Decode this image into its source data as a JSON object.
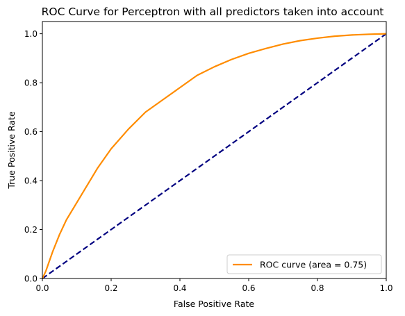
{
  "chart_data": {
    "type": "line",
    "title": "ROC Curve for Perceptron with all predictors taken into account",
    "xlabel": "False Positive Rate",
    "ylabel": "True Positive Rate",
    "xlim": [
      0.0,
      1.0
    ],
    "ylim": [
      0.0,
      1.05
    ],
    "x_ticks": [
      "0.0",
      "0.2",
      "0.4",
      "0.6",
      "0.8",
      "1.0"
    ],
    "y_ticks": [
      "0.0",
      "0.2",
      "0.4",
      "0.6",
      "0.8",
      "1.0"
    ],
    "grid": false,
    "legend_position": "lower-right",
    "series": [
      {
        "name": "ROC curve (area = 0.75)",
        "color": "#ff8c00",
        "style": "solid",
        "x": [
          0.0,
          0.01,
          0.02,
          0.03,
          0.05,
          0.07,
          0.1,
          0.13,
          0.16,
          0.2,
          0.25,
          0.3,
          0.35,
          0.4,
          0.45,
          0.5,
          0.55,
          0.6,
          0.65,
          0.7,
          0.75,
          0.8,
          0.85,
          0.9,
          0.95,
          1.0
        ],
        "y": [
          0.0,
          0.03,
          0.07,
          0.11,
          0.18,
          0.24,
          0.31,
          0.38,
          0.45,
          0.53,
          0.61,
          0.68,
          0.73,
          0.78,
          0.83,
          0.865,
          0.895,
          0.92,
          0.94,
          0.958,
          0.972,
          0.982,
          0.99,
          0.995,
          0.998,
          1.0
        ]
      },
      {
        "name": "",
        "color": "#000080",
        "style": "dashed",
        "x": [
          0.0,
          1.0
        ],
        "y": [
          0.0,
          1.0
        ]
      }
    ]
  }
}
